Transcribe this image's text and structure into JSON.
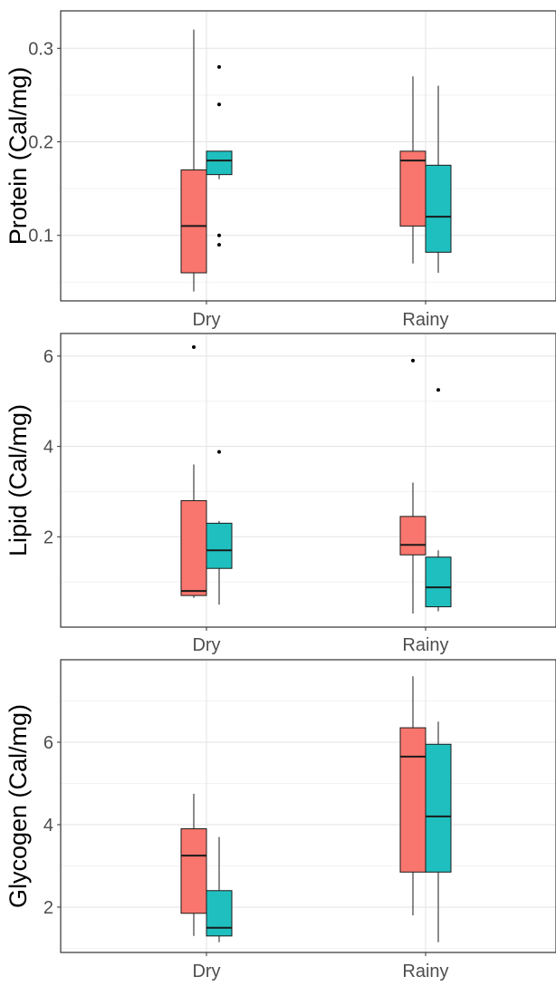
{
  "colors": {
    "series_1": "#F8766D",
    "series_2": "#20BFBF",
    "grid_major": "#e3e3e3",
    "grid_minor": "#f2f2f2",
    "panel_border": "#333333",
    "box_line": "#1a1a1a"
  },
  "chart_data": [
    {
      "type": "boxplot",
      "ylabel": "Protein (Cal/mg)",
      "xlabel": "",
      "categories": [
        "Dry",
        "Rainy"
      ],
      "ylim": [
        0.03,
        0.34
      ],
      "yticks": [
        0.1,
        0.2,
        0.3
      ],
      "ytick_labels": [
        "0.1",
        "0.2",
        "0.3"
      ],
      "grid": true,
      "legend": "none",
      "series": [
        {
          "color": "#F8766D",
          "boxes": [
            {
              "category": "Dry",
              "min": 0.04,
              "q1": 0.06,
              "median": 0.11,
              "q3": 0.17,
              "max": 0.32,
              "outliers": []
            },
            {
              "category": "Rainy",
              "min": 0.07,
              "q1": 0.11,
              "median": 0.18,
              "q3": 0.19,
              "max": 0.27,
              "outliers": []
            }
          ]
        },
        {
          "color": "#20BFBF",
          "boxes": [
            {
              "category": "Dry",
              "min": 0.16,
              "q1": 0.165,
              "median": 0.18,
              "q3": 0.19,
              "max": 0.19,
              "outliers": [
                0.28,
                0.24,
                0.1,
                0.09
              ]
            },
            {
              "category": "Rainy",
              "min": 0.06,
              "q1": 0.082,
              "median": 0.12,
              "q3": 0.175,
              "max": 0.26,
              "outliers": []
            }
          ]
        }
      ]
    },
    {
      "type": "boxplot",
      "ylabel": "Lipid (Cal/mg)",
      "xlabel": "",
      "categories": [
        "Dry",
        "Rainy"
      ],
      "ylim": [
        0.0,
        6.5
      ],
      "yticks": [
        2,
        4,
        6
      ],
      "ytick_labels": [
        "2",
        "4",
        "6"
      ],
      "grid": true,
      "legend": "none",
      "series": [
        {
          "color": "#F8766D",
          "boxes": [
            {
              "category": "Dry",
              "min": 0.65,
              "q1": 0.7,
              "median": 0.8,
              "q3": 2.8,
              "max": 3.6,
              "outliers": [
                6.2
              ]
            },
            {
              "category": "Rainy",
              "min": 0.3,
              "q1": 1.6,
              "median": 1.82,
              "q3": 2.45,
              "max": 3.2,
              "outliers": [
                5.9
              ]
            }
          ]
        },
        {
          "color": "#20BFBF",
          "boxes": [
            {
              "category": "Dry",
              "min": 0.5,
              "q1": 1.3,
              "median": 1.7,
              "q3": 2.3,
              "max": 2.35,
              "outliers": [
                3.88
              ]
            },
            {
              "category": "Rainy",
              "min": 0.35,
              "q1": 0.45,
              "median": 0.88,
              "q3": 1.55,
              "max": 1.7,
              "outliers": [
                5.25
              ]
            }
          ]
        }
      ]
    },
    {
      "type": "boxplot",
      "ylabel": "Glycogen (Cal/mg)",
      "xlabel": "",
      "categories": [
        "Dry",
        "Rainy"
      ],
      "ylim": [
        0.9,
        8.0
      ],
      "yticks": [
        2,
        4,
        6
      ],
      "ytick_labels": [
        "2",
        "4",
        "6"
      ],
      "grid": true,
      "legend": "none",
      "series": [
        {
          "color": "#F8766D",
          "boxes": [
            {
              "category": "Dry",
              "min": 1.3,
              "q1": 1.85,
              "median": 3.25,
              "q3": 3.9,
              "max": 4.75,
              "outliers": []
            },
            {
              "category": "Rainy",
              "min": 1.8,
              "q1": 2.85,
              "median": 5.65,
              "q3": 6.35,
              "max": 7.6,
              "outliers": []
            }
          ]
        },
        {
          "color": "#20BFBF",
          "boxes": [
            {
              "category": "Dry",
              "min": 1.15,
              "q1": 1.3,
              "median": 1.5,
              "q3": 2.4,
              "max": 3.7,
              "outliers": []
            },
            {
              "category": "Rainy",
              "min": 1.15,
              "q1": 2.85,
              "median": 4.2,
              "q3": 5.95,
              "max": 6.5,
              "outliers": []
            }
          ]
        }
      ]
    }
  ]
}
